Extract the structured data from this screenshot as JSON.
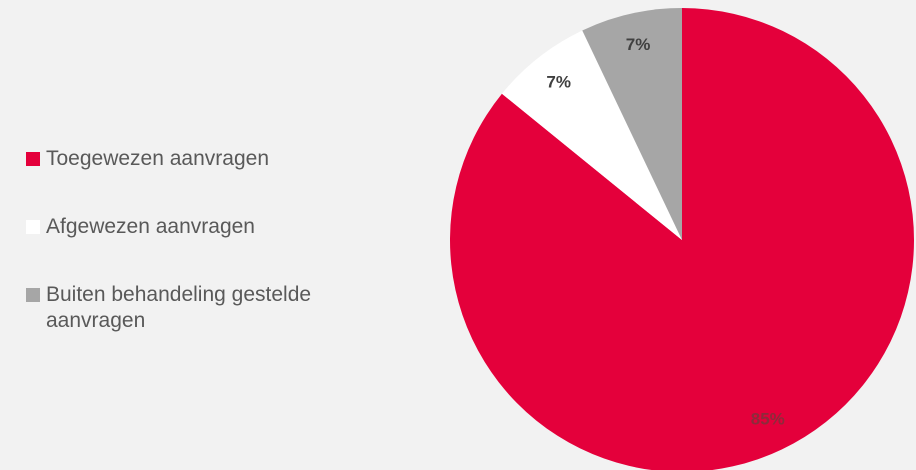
{
  "chart_data": {
    "type": "pie",
    "categories": [
      "Toegewezen aanvragen",
      "Afgewezen aanvragen",
      "Buiten behandeling gestelde aanvragen"
    ],
    "values": [
      85,
      7,
      7
    ],
    "value_labels": [
      "85%",
      "7%",
      "7%"
    ],
    "colors": [
      "#e4003b",
      "#ffffff",
      "#a6a6a6"
    ],
    "label_colors": [
      "#8c2b3b",
      "#404040",
      "#404040"
    ],
    "legend": "left"
  }
}
